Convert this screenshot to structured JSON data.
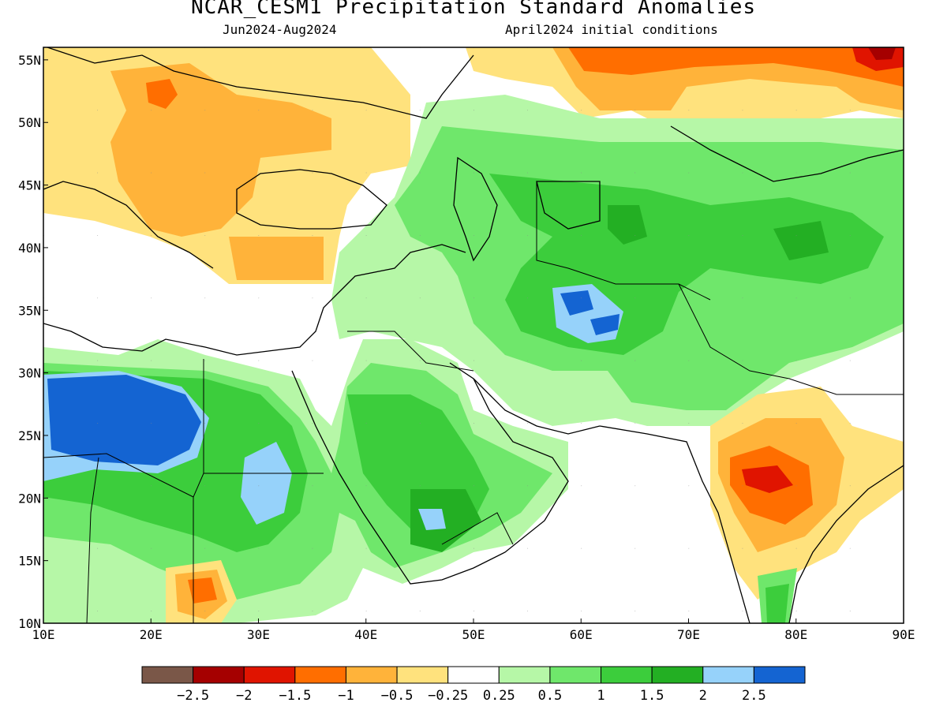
{
  "title": "NCAR_CESM1 Precipitation Standard Anomalies",
  "subtitle_left": "Jun2024-Aug2024",
  "subtitle_right": "April2024 initial conditions",
  "map": {
    "lon_range": [
      10,
      90
    ],
    "lat_range": [
      10,
      56
    ],
    "lon_ticks": [
      "10E",
      "20E",
      "30E",
      "40E",
      "50E",
      "60E",
      "70E",
      "80E",
      "90E"
    ],
    "lat_ticks": [
      "10N",
      "15N",
      "20N",
      "25N",
      "30N",
      "35N",
      "40N",
      "45N",
      "50N",
      "55N"
    ]
  },
  "colorbar": {
    "colors": [
      "#7a5748",
      "#a50000",
      "#e01400",
      "#ff6e00",
      "#ffb33a",
      "#ffe27d",
      "#ffffff",
      "#b6f7a7",
      "#6fe76b",
      "#3ccd3c",
      "#23af23",
      "#96d2fa",
      "#1464d2"
    ],
    "labels": [
      "−2.5",
      "−2",
      "−1.5",
      "−1",
      "−0.5",
      "−0.25",
      "0.25",
      "0.5",
      "1",
      "1.5",
      "2",
      "2.5"
    ]
  }
}
